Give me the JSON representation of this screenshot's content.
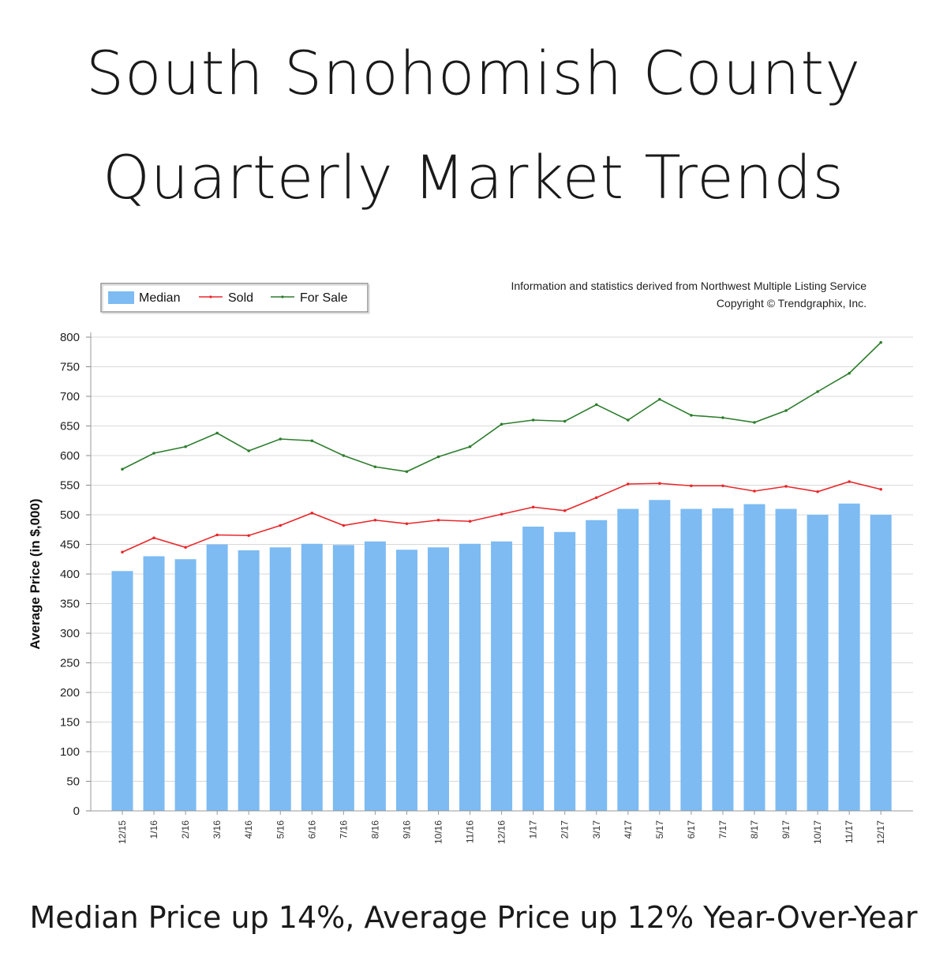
{
  "header": {
    "title_line1": "South Snohomish County",
    "title_line2": "Quarterly Market Trends"
  },
  "footer": {
    "caption": "Median Price up 14%, Average Price up 12% Year-Over-Year"
  },
  "source": {
    "line1": "Information and statistics derived from Northwest Multiple Listing Service",
    "line2": "Copyright © Trendgraphix, Inc."
  },
  "colors": {
    "median": "#7dbbf2",
    "sold": "#e8282b",
    "for_sale": "#2e7d2e"
  },
  "chart_data": {
    "type": "bar",
    "title": "",
    "xlabel": "",
    "ylabel": "Average Price (in $,000)",
    "ylim": [
      0,
      800
    ],
    "yticks": [
      0,
      50,
      100,
      150,
      200,
      250,
      300,
      350,
      400,
      450,
      500,
      550,
      600,
      650,
      700,
      750,
      800
    ],
    "grid": true,
    "legend_position": "top-left",
    "categories": [
      "12/15",
      "1/16",
      "2/16",
      "3/16",
      "4/16",
      "5/16",
      "6/16",
      "7/16",
      "8/16",
      "9/16",
      "10/16",
      "11/16",
      "12/16",
      "1/17",
      "2/17",
      "3/17",
      "4/17",
      "5/17",
      "6/17",
      "7/17",
      "8/17",
      "9/17",
      "10/17",
      "11/17",
      "12/17"
    ],
    "series": [
      {
        "name": "Median",
        "type": "bar",
        "values": [
          405,
          430,
          425,
          450,
          440,
          445,
          451,
          449,
          455,
          441,
          445,
          451,
          455,
          480,
          471,
          491,
          510,
          525,
          510,
          511,
          518,
          510,
          500,
          519,
          500
        ]
      },
      {
        "name": "Sold",
        "type": "line",
        "values": [
          437,
          461,
          445,
          466,
          465,
          482,
          503,
          482,
          491,
          485,
          491,
          489,
          501,
          513,
          507,
          529,
          552,
          553,
          549,
          549,
          540,
          548,
          539,
          556,
          543
        ]
      },
      {
        "name": "For Sale",
        "type": "line",
        "values": [
          577,
          604,
          615,
          638,
          608,
          628,
          625,
          600,
          581,
          573,
          598,
          615,
          653,
          660,
          658,
          686,
          660,
          695,
          668,
          664,
          656,
          676,
          708,
          739,
          791
        ]
      }
    ]
  }
}
